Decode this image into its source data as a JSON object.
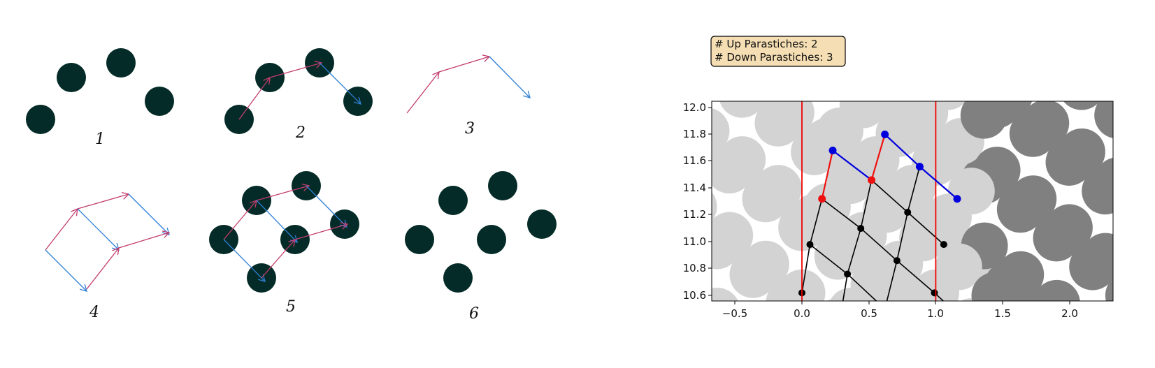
{
  "sketch": {
    "step_labels": [
      "1",
      "2",
      "3",
      "4",
      "5",
      "6"
    ],
    "colors": {
      "disk": "#042b27",
      "up_arrow": "#c43c6e",
      "down_arrow": "#2e7fd6"
    }
  },
  "info_box": {
    "line1": "# Up Parastiches: 2",
    "line2": "# Down Parastiches: 3",
    "background": "#f5deb3"
  },
  "plot": {
    "x_ticks": [
      "−0.5",
      "0.0",
      "0.5",
      "1.0",
      "1.5",
      "2.0"
    ],
    "y_ticks": [
      "12.0",
      "11.8",
      "11.6",
      "11.4",
      "11.2",
      "11.0",
      "10.8",
      "10.6"
    ],
    "colors": {
      "light_disk": "#d3d3d3",
      "dark_disk": "#808080",
      "boundary": "#ee0000",
      "up_chain": "#ee1111",
      "down_chain": "#0000dd",
      "lattice": "#000000"
    }
  }
}
